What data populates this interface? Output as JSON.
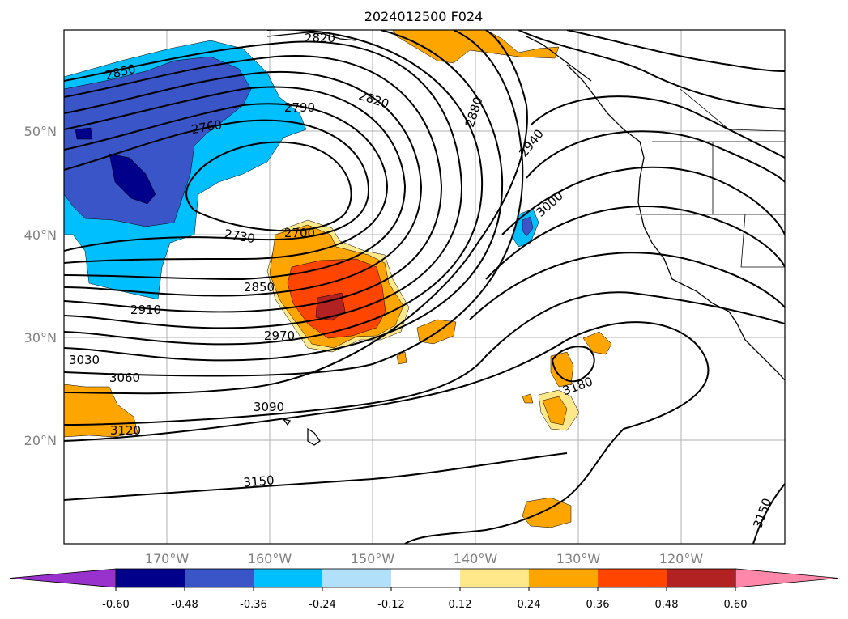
{
  "title": "2024012500 F024",
  "lat_labels": [
    "50°N",
    "40°N",
    "30°N",
    "20°N"
  ],
  "lon_labels": [
    "170°W",
    "160°W",
    "150°W",
    "140°W",
    "130°W",
    "120°W"
  ],
  "contour_labels": [
    "2820",
    "2850",
    "2790",
    "2820",
    "2880",
    "2760",
    "2940",
    "3000",
    "2730",
    "2700",
    "2850",
    "2910",
    "2970",
    "3030",
    "3060",
    "3180",
    "3090",
    "3120",
    "3150",
    "3150"
  ],
  "colorbar": {
    "ticks": [
      "-0.60",
      "-0.48",
      "-0.36",
      "-0.24",
      "-0.12",
      "0.12",
      "0.24",
      "0.36",
      "0.48",
      "0.60"
    ],
    "colors": [
      "#9932cc",
      "#00008b",
      "#3a55c8",
      "#00bfff",
      "#b0e0fa",
      "#ffffff",
      "#ffe88a",
      "#ffa500",
      "#ff4500",
      "#b22222",
      "#ff88aa"
    ]
  }
}
